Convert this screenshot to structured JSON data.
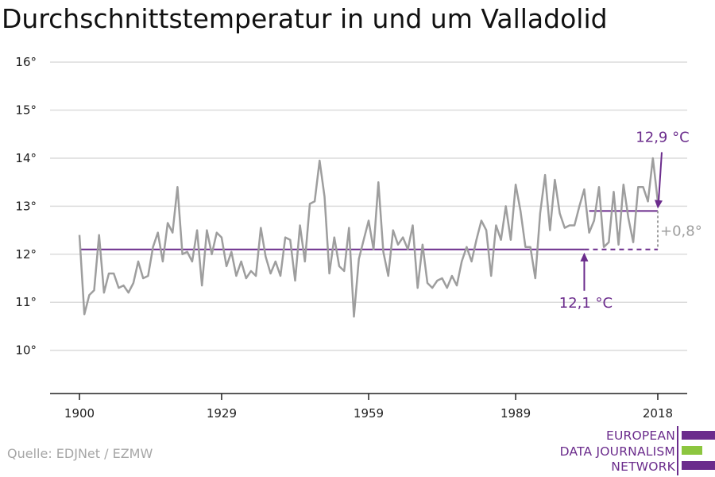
{
  "chart_data": {
    "type": "line",
    "title": "Durchschnittstemperatur in und um Valladolid",
    "ylim": [
      9.1,
      16.3
    ],
    "yticks": [
      {
        "value": 10,
        "label": "10°"
      },
      {
        "value": 11,
        "label": "11°"
      },
      {
        "value": 12,
        "label": "12°"
      },
      {
        "value": 13,
        "label": "13°"
      },
      {
        "value": 14,
        "label": "14°"
      },
      {
        "value": 15,
        "label": "15°"
      },
      {
        "value": 16,
        "label": "16°"
      }
    ],
    "xlim": [
      1894,
      2024
    ],
    "xticks": [
      {
        "value": 1900,
        "label": "1900"
      },
      {
        "value": 1929,
        "label": "1929"
      },
      {
        "value": 1959,
        "label": "1959"
      },
      {
        "value": 1989,
        "label": "1989"
      },
      {
        "value": 2018,
        "label": "2018"
      }
    ],
    "grid": true,
    "series": [
      {
        "color": "#9e9e9e",
        "x": [
          1900,
          1901,
          1902,
          1903,
          1904,
          1905,
          1906,
          1907,
          1908,
          1909,
          1910,
          1911,
          1912,
          1913,
          1914,
          1915,
          1916,
          1917,
          1918,
          1919,
          1920,
          1921,
          1922,
          1923,
          1924,
          1925,
          1926,
          1927,
          1928,
          1929,
          1930,
          1931,
          1932,
          1933,
          1934,
          1935,
          1936,
          1937,
          1938,
          1939,
          1940,
          1941,
          1942,
          1943,
          1944,
          1945,
          1946,
          1947,
          1948,
          1949,
          1950,
          1951,
          1952,
          1953,
          1954,
          1955,
          1956,
          1957,
          1958,
          1959,
          1960,
          1961,
          1962,
          1963,
          1964,
          1965,
          1966,
          1967,
          1968,
          1969,
          1970,
          1971,
          1972,
          1973,
          1974,
          1975,
          1976,
          1977,
          1978,
          1979,
          1980,
          1981,
          1982,
          1983,
          1984,
          1985,
          1986,
          1987,
          1988,
          1989,
          1990,
          1991,
          1992,
          1993,
          1994,
          1995,
          1996,
          1997,
          1998,
          1999,
          2000,
          2001,
          2002,
          2003,
          2004,
          2005,
          2006,
          2007,
          2008,
          2009,
          2010,
          2011,
          2012,
          2013,
          2014,
          2015,
          2016,
          2017,
          2018
        ],
        "y": [
          12.4,
          10.75,
          11.15,
          11.25,
          12.4,
          11.2,
          11.6,
          11.6,
          11.3,
          11.35,
          11.2,
          11.4,
          11.85,
          11.5,
          11.55,
          12.15,
          12.45,
          11.85,
          12.65,
          12.45,
          13.4,
          12.0,
          12.05,
          11.85,
          12.5,
          11.35,
          12.5,
          12.0,
          12.45,
          12.35,
          11.75,
          12.05,
          11.55,
          11.85,
          11.5,
          11.65,
          11.55,
          12.55,
          11.95,
          11.6,
          11.85,
          11.55,
          12.35,
          12.3,
          11.45,
          12.6,
          11.85,
          13.05,
          13.1,
          13.95,
          13.2,
          11.6,
          12.35,
          11.75,
          11.65,
          12.55,
          10.7,
          11.9,
          12.3,
          12.7,
          12.1,
          13.5,
          12.05,
          11.55,
          12.5,
          12.2,
          12.35,
          12.1,
          12.6,
          11.3,
          12.2,
          11.4,
          11.3,
          11.45,
          11.5,
          11.3,
          11.55,
          11.35,
          11.85,
          12.15,
          11.85,
          12.3,
          12.7,
          12.5,
          11.55,
          12.6,
          12.3,
          13.0,
          12.3,
          13.45,
          12.9,
          12.15,
          12.15,
          11.5,
          12.85,
          13.65,
          12.5,
          13.55,
          12.85,
          12.55,
          12.6,
          12.6,
          13.0,
          13.35,
          12.45,
          12.7,
          13.4,
          12.15,
          12.25,
          13.3,
          12.2,
          13.45,
          12.75,
          12.25,
          13.4,
          13.4,
          13.1,
          14.0,
          13.1
        ]
      }
    ],
    "reference_lines": [
      {
        "value": 12.1,
        "x_from": 1900,
        "x_to": 2003,
        "dashed_to": 2018,
        "color": "#6b2c8c"
      },
      {
        "value": 12.9,
        "x_from": 2004,
        "x_to": 2018,
        "color": "#6b2c8c"
      }
    ],
    "annotations": {
      "baseline_label": "12,1 °C",
      "recent_label": "12,9 °C",
      "difference_label": "+0,8°"
    }
  },
  "source": "Quelle: EDJNet / EZMW",
  "logo": {
    "line1": "EUROPEAN",
    "line2": "DATA JOURNALISM",
    "line3": "NETWORK",
    "colors": {
      "purple": "#6b2c8c",
      "green": "#8cc63f"
    }
  }
}
